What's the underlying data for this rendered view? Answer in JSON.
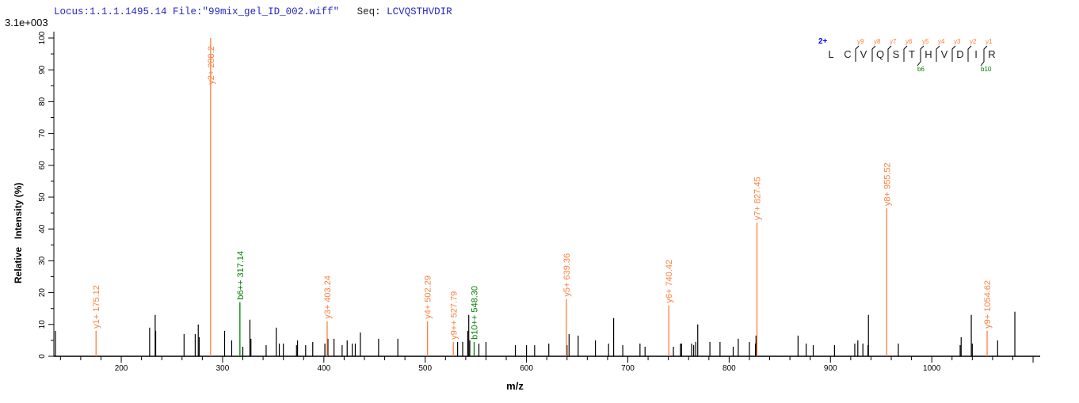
{
  "header": {
    "locus_label": "Locus:1.1.1.1495.14",
    "file_label": "File:\"99mix_gel_ID_002.wiff\"",
    "seq_key": "Seq:",
    "seq_value": "LCVQSTHVDIR"
  },
  "colors": {
    "y_ion": "#ff7f3f",
    "b_ion": "#008000",
    "unmatched": "#000000",
    "header": "#2626c8"
  },
  "peptide": {
    "charge": "2+",
    "residues": [
      "L",
      "C",
      "V",
      "Q",
      "S",
      "T",
      "H",
      "V",
      "D",
      "I",
      "R"
    ],
    "y_labels": [
      "y9",
      "y8",
      "y7",
      "y6",
      "y5",
      "y4",
      "y3",
      "y2",
      "y1"
    ],
    "b_labels": [
      {
        "label": "b6",
        "after": 6
      },
      {
        "label": "b10",
        "after": 10
      }
    ]
  },
  "chart_data": {
    "type": "bar",
    "scale_label": "3.1e+003",
    "xlabel": "m/z",
    "ylabel": "Relative   Intensity (%)",
    "xlim": [
      133.5,
      1107
    ],
    "ylim": [
      0,
      100
    ],
    "x_ticks": [
      200,
      300,
      400,
      500,
      600,
      700,
      800,
      900,
      1000
    ],
    "y_ticks": [
      0,
      10,
      20,
      30,
      40,
      50,
      60,
      70,
      80,
      90,
      100
    ],
    "annotated_peaks": [
      {
        "mz": 175.12,
        "intensity": 8,
        "label": "y1+ 175.12",
        "ion": "y"
      },
      {
        "mz": 288.2,
        "intensity": 100,
        "label": "y2+ 288.2",
        "ion": "y"
      },
      {
        "mz": 317.14,
        "intensity": 17,
        "label": "b6++ 317.14",
        "ion": "b"
      },
      {
        "mz": 403.24,
        "intensity": 11,
        "label": "y3+ 403.24",
        "ion": "y"
      },
      {
        "mz": 502.29,
        "intensity": 11,
        "label": "y4+ 502.29",
        "ion": "y"
      },
      {
        "mz": 527.79,
        "intensity": 4.5,
        "label": "y9++ 527.79",
        "ion": "y"
      },
      {
        "mz": 548.3,
        "intensity": 4.5,
        "label": "b10++ 548.30",
        "ion": "b"
      },
      {
        "mz": 639.36,
        "intensity": 18,
        "label": "y5+ 639.36",
        "ion": "y"
      },
      {
        "mz": 740.42,
        "intensity": 16,
        "label": "y6+ 740.42",
        "ion": "y"
      },
      {
        "mz": 827.45,
        "intensity": 42,
        "label": "y7+ 827.45",
        "ion": "y"
      },
      {
        "mz": 955.52,
        "intensity": 46.5,
        "label": "y8+ 955.52",
        "ion": "y"
      },
      {
        "mz": 1054.62,
        "intensity": 8,
        "label": "y9+ 1054.62",
        "ion": "y"
      }
    ],
    "peaks": [
      [
        135,
        8
      ],
      [
        228,
        9
      ],
      [
        233.5,
        13
      ],
      [
        234,
        8
      ],
      [
        262,
        7
      ],
      [
        273,
        7
      ],
      [
        276,
        10
      ],
      [
        277,
        6
      ],
      [
        302,
        8
      ],
      [
        309,
        5
      ],
      [
        320,
        3
      ],
      [
        327,
        11.5
      ],
      [
        328,
        5.5
      ],
      [
        343,
        3.5
      ],
      [
        353,
        9
      ],
      [
        356,
        4
      ],
      [
        360,
        4
      ],
      [
        373,
        3.5
      ],
      [
        374,
        5
      ],
      [
        382,
        3.5
      ],
      [
        389,
        4.5
      ],
      [
        401,
        4
      ],
      [
        404,
        5.5
      ],
      [
        410,
        5.5
      ],
      [
        418,
        3.5
      ],
      [
        423,
        5
      ],
      [
        428,
        4
      ],
      [
        431,
        4
      ],
      [
        436,
        7.5
      ],
      [
        454,
        5.5
      ],
      [
        473,
        5.5
      ],
      [
        532,
        4.5
      ],
      [
        537,
        4.5
      ],
      [
        542,
        8
      ],
      [
        543,
        13
      ],
      [
        544,
        5
      ],
      [
        553,
        4
      ],
      [
        560,
        4.5
      ],
      [
        589,
        3.5
      ],
      [
        600,
        3.5
      ],
      [
        608,
        3.5
      ],
      [
        622,
        4
      ],
      [
        640,
        3.5
      ],
      [
        642,
        7
      ],
      [
        651,
        6.5
      ],
      [
        668,
        5
      ],
      [
        681,
        4
      ],
      [
        686,
        12
      ],
      [
        695,
        3.5
      ],
      [
        712,
        4
      ],
      [
        717,
        3
      ],
      [
        745,
        3
      ],
      [
        752,
        4
      ],
      [
        753,
        4
      ],
      [
        763,
        4
      ],
      [
        765,
        3.5
      ],
      [
        767,
        4.5
      ],
      [
        769,
        10
      ],
      [
        781,
        4.5
      ],
      [
        791,
        4.5
      ],
      [
        804,
        3
      ],
      [
        809,
        5.5
      ],
      [
        820,
        4.5
      ],
      [
        826,
        4
      ],
      [
        826.5,
        6.5
      ],
      [
        827,
        5
      ],
      [
        868,
        6.5
      ],
      [
        876,
        4
      ],
      [
        883,
        3.5
      ],
      [
        904,
        3.5
      ],
      [
        924,
        4
      ],
      [
        927,
        5
      ],
      [
        932,
        4
      ],
      [
        937,
        3.5
      ],
      [
        937.5,
        13
      ],
      [
        967,
        4
      ],
      [
        1028,
        3.5
      ],
      [
        1029,
        6
      ],
      [
        1039,
        13
      ],
      [
        1040,
        4
      ],
      [
        1065,
        5
      ],
      [
        1082,
        14
      ]
    ]
  }
}
